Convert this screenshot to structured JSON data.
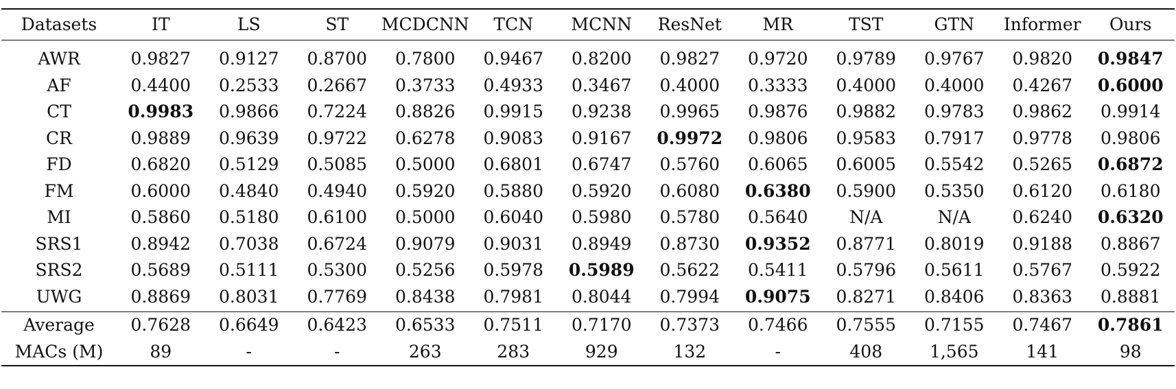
{
  "table": {
    "columns": [
      "Datasets",
      "IT",
      "LS",
      "ST",
      "MCDCNN",
      "TCN",
      "MCNN",
      "ResNet",
      "MR",
      "TST",
      "GTN",
      "Informer",
      "Ours"
    ],
    "rows": [
      {
        "name": "AWR",
        "values": [
          "0.9827",
          "0.9127",
          "0.8700",
          "0.7800",
          "0.9467",
          "0.8200",
          "0.9827",
          "0.9720",
          "0.9789",
          "0.9767",
          "0.9820",
          "0.9847"
        ],
        "bold_index": 11
      },
      {
        "name": "AF",
        "values": [
          "0.4400",
          "0.2533",
          "0.2667",
          "0.3733",
          "0.4933",
          "0.3467",
          "0.4000",
          "0.3333",
          "0.4000",
          "0.4000",
          "0.4267",
          "0.6000"
        ],
        "bold_index": 11
      },
      {
        "name": "CT",
        "values": [
          "0.9983",
          "0.9866",
          "0.7224",
          "0.8826",
          "0.9915",
          "0.9238",
          "0.9965",
          "0.9876",
          "0.9882",
          "0.9783",
          "0.9862",
          "0.9914"
        ],
        "bold_index": 0
      },
      {
        "name": "CR",
        "values": [
          "0.9889",
          "0.9639",
          "0.9722",
          "0.6278",
          "0.9083",
          "0.9167",
          "0.9972",
          "0.9806",
          "0.9583",
          "0.7917",
          "0.9778",
          "0.9806"
        ],
        "bold_index": 6
      },
      {
        "name": "FD",
        "values": [
          "0.6820",
          "0.5129",
          "0.5085",
          "0.5000",
          "0.6801",
          "0.6747",
          "0.5760",
          "0.6065",
          "0.6005",
          "0.5542",
          "0.5265",
          "0.6872"
        ],
        "bold_index": 11
      },
      {
        "name": "FM",
        "values": [
          "0.6000",
          "0.4840",
          "0.4940",
          "0.5920",
          "0.5880",
          "0.5920",
          "0.6080",
          "0.6380",
          "0.5900",
          "0.5350",
          "0.6120",
          "0.6180"
        ],
        "bold_index": 7
      },
      {
        "name": "MI",
        "values": [
          "0.5860",
          "0.5180",
          "0.6100",
          "0.5000",
          "0.6040",
          "0.5980",
          "0.5780",
          "0.5640",
          "N/A",
          "N/A",
          "0.6240",
          "0.6320"
        ],
        "bold_index": 11
      },
      {
        "name": "SRS1",
        "values": [
          "0.8942",
          "0.7038",
          "0.6724",
          "0.9079",
          "0.9031",
          "0.8949",
          "0.8730",
          "0.9352",
          "0.8771",
          "0.8019",
          "0.9188",
          "0.8867"
        ],
        "bold_index": 7
      },
      {
        "name": "SRS2",
        "values": [
          "0.5689",
          "0.5111",
          "0.5300",
          "0.5256",
          "0.5978",
          "0.5989",
          "0.5622",
          "0.5411",
          "0.5796",
          "0.5611",
          "0.5767",
          "0.5922"
        ],
        "bold_index": 5
      },
      {
        "name": "UWG",
        "values": [
          "0.8869",
          "0.8031",
          "0.7769",
          "0.8438",
          "0.7981",
          "0.8044",
          "0.7994",
          "0.9075",
          "0.8271",
          "0.8406",
          "0.8363",
          "0.8881"
        ],
        "bold_index": 7
      }
    ],
    "summary": [
      {
        "name": "Average",
        "values": [
          "0.7628",
          "0.6649",
          "0.6423",
          "0.6533",
          "0.7511",
          "0.7170",
          "0.7373",
          "0.7466",
          "0.7555",
          "0.7155",
          "0.7467",
          "0.7861"
        ],
        "bold_index": 11
      },
      {
        "name": "MACs (M)",
        "values": [
          "89",
          "-",
          "-",
          "263",
          "283",
          "929",
          "132",
          "-",
          "408",
          "1,565",
          "141",
          "98"
        ],
        "bold_index": -1
      }
    ]
  }
}
